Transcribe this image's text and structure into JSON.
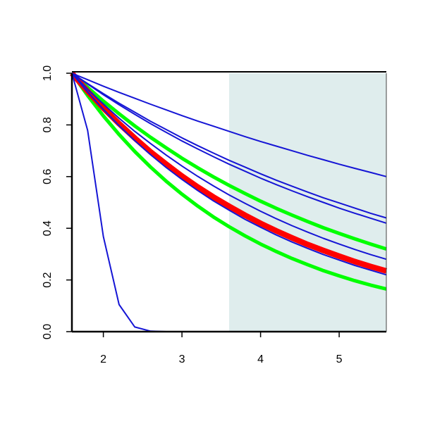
{
  "chart_data": {
    "type": "line",
    "x": [
      1.6,
      1.8,
      2.0,
      2.2,
      2.4,
      2.6,
      2.8,
      3.0,
      3.2,
      3.4,
      3.6,
      3.8,
      4.0,
      4.2,
      4.4,
      4.6,
      4.8,
      5.0,
      5.2,
      5.4,
      5.6
    ],
    "series": [
      {
        "color": "#00ff00",
        "width": 5,
        "values": [
          1,
          0.945,
          0.892,
          0.843,
          0.796,
          0.752,
          0.711,
          0.671,
          0.634,
          0.599,
          0.566,
          0.535,
          0.505,
          0.477,
          0.451,
          0.426,
          0.402,
          0.38,
          0.359,
          0.339,
          0.32
        ]
      },
      {
        "color": "#00ff00",
        "width": 5,
        "values": [
          1,
          0.914,
          0.835,
          0.763,
          0.697,
          0.637,
          0.582,
          0.532,
          0.486,
          0.444,
          0.406,
          0.371,
          0.339,
          0.31,
          0.283,
          0.259,
          0.236,
          0.216,
          0.197,
          0.18,
          0.165
        ]
      },
      {
        "color": "#ff0000",
        "width": 8,
        "values": [
          1,
          0.93,
          0.865,
          0.805,
          0.749,
          0.696,
          0.648,
          0.602,
          0.56,
          0.521,
          0.485,
          0.451,
          0.419,
          0.39,
          0.363,
          0.337,
          0.314,
          0.292,
          0.271,
          0.252,
          0.235
        ]
      },
      {
        "color": "#1515d5",
        "width": 2,
        "values": [
          1,
          0.975,
          0.95,
          0.926,
          0.903,
          0.88,
          0.858,
          0.836,
          0.815,
          0.795,
          0.775,
          0.755,
          0.736,
          0.718,
          0.7,
          0.682,
          0.665,
          0.648,
          0.632,
          0.616,
          0.6
        ]
      },
      {
        "color": "#1515d5",
        "width": 2,
        "values": [
          1,
          0.96,
          0.921,
          0.884,
          0.849,
          0.814,
          0.782,
          0.75,
          0.72,
          0.691,
          0.663,
          0.637,
          0.611,
          0.586,
          0.563,
          0.54,
          0.518,
          0.498,
          0.478,
          0.458,
          0.44
        ]
      },
      {
        "color": "#1515d5",
        "width": 2,
        "values": [
          1,
          0.958,
          0.917,
          0.878,
          0.841,
          0.805,
          0.771,
          0.738,
          0.707,
          0.677,
          0.648,
          0.621,
          0.594,
          0.569,
          0.545,
          0.522,
          0.5,
          0.478,
          0.458,
          0.439,
          0.42
        ]
      },
      {
        "color": "#1515d5",
        "width": 2,
        "values": [
          1,
          0.938,
          0.881,
          0.826,
          0.775,
          0.728,
          0.683,
          0.641,
          0.601,
          0.564,
          0.529,
          0.497,
          0.466,
          0.437,
          0.41,
          0.385,
          0.361,
          0.339,
          0.318,
          0.298,
          0.28
        ]
      },
      {
        "color": "#1515d5",
        "width": 2,
        "values": [
          1,
          0.927,
          0.86,
          0.797,
          0.739,
          0.685,
          0.635,
          0.589,
          0.546,
          0.506,
          0.47,
          0.435,
          0.404,
          0.374,
          0.347,
          0.322,
          0.298,
          0.277,
          0.256,
          0.238,
          0.22
        ]
      },
      {
        "color": "#1515d5",
        "width": 2,
        "values": [
          1,
          0.779,
          0.368,
          0.105,
          0.018,
          0.002,
          0,
          0,
          0,
          0,
          0,
          0,
          0,
          0,
          0,
          0,
          0,
          0,
          0,
          0,
          0
        ]
      }
    ],
    "shaded_xrange": [
      3.6,
      5.6
    ],
    "shade_color": "#dfeded",
    "xlim": [
      1.6,
      5.6
    ],
    "xticks": [
      2,
      3,
      4,
      5
    ],
    "ylim": [
      0,
      1
    ],
    "yticks": [
      {
        "value": 0,
        "label": "0.0"
      },
      {
        "value": 0.2,
        "label": "0.2"
      },
      {
        "value": 0.4,
        "label": "0.4"
      },
      {
        "value": 0.6,
        "label": "0.6"
      },
      {
        "value": 0.8,
        "label": "0.8"
      },
      {
        "value": 1,
        "label": "1.0"
      }
    ]
  }
}
